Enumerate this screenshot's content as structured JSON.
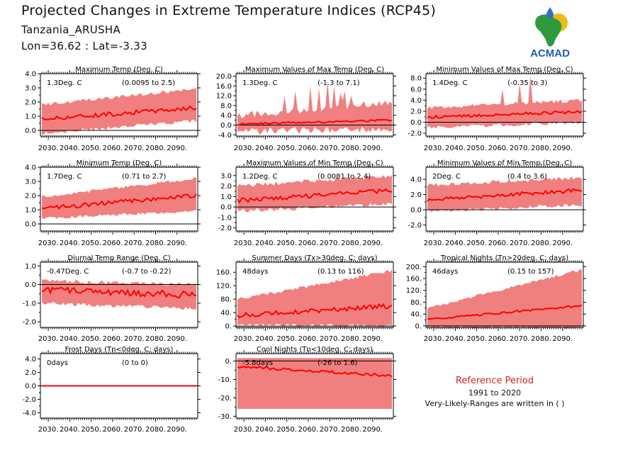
{
  "header": {
    "title": "Projected Changes in Extreme Temperature Indices (RCP45)",
    "region": "Tanzania_ARUSHA",
    "coords": "Lon=36.62 : Lat=-3.33"
  },
  "logo": {
    "text": "ACMAD",
    "icon": "africa-map-logo-icon",
    "colors": {
      "africa": "#2f9a3c",
      "sun": "#f2b81c",
      "drop": "#2f6fc4",
      "text": "#1f5fb0"
    }
  },
  "colors": {
    "band": "#f08080",
    "line": "#ff0000",
    "zero": "#000000",
    "axis": "#000000"
  },
  "reference": {
    "title": "Reference Period",
    "years": "1991 to 2020",
    "note": "Very-Likely-Ranges are written in ( )"
  },
  "chart_data": [
    {
      "id": "max-temp",
      "type": "area",
      "title": "Maximum Temp (Deg. C)",
      "stat": "1.3Deg. C",
      "range": "(0.0095 to 2.5)",
      "x_ticks": [
        "2030.",
        "2040.",
        "2050.",
        "2060.",
        "2070.",
        "2080.",
        "2090."
      ],
      "ylim": [
        -0.4,
        4.0
      ],
      "y_ticks": [
        {
          "v": 4.0,
          "t": "4.0"
        },
        {
          "v": 3.0,
          "t": "3.0"
        },
        {
          "v": 2.0,
          "t": "2.0"
        },
        {
          "v": 1.0,
          "t": "1.0"
        },
        {
          "v": 0.0,
          "t": "0.0"
        }
      ],
      "series": {
        "start": [
          0.8,
          -0.1,
          1.7
        ],
        "end": [
          1.6,
          0.8,
          2.8
        ],
        "noise": 0.15,
        "band_noise": 0.3,
        "spikes": []
      }
    },
    {
      "id": "max-of-max-temp",
      "type": "area",
      "title": "Maximum Values of Max Temp (Deg. C)",
      "stat": "1.3Deg. C",
      "range": "(-1.3 to 7.1)",
      "x_ticks": [
        "2030.",
        "2040.",
        "2050.",
        "2060.",
        "2070.",
        "2080.",
        "2090."
      ],
      "ylim": [
        -4.5,
        21
      ],
      "y_ticks": [
        {
          "v": 20,
          "t": "20.0"
        },
        {
          "v": 16,
          "t": "16.0"
        },
        {
          "v": 12,
          "t": "12.0"
        },
        {
          "v": 8,
          "t": "8.0"
        },
        {
          "v": 4,
          "t": "4.0"
        },
        {
          "v": 0,
          "t": "0.0"
        },
        {
          "v": -4,
          "t": "-4.0"
        }
      ],
      "series": {
        "start": [
          0.4,
          -1.0,
          2.5
        ],
        "end": [
          2.0,
          -0.5,
          8.0
        ],
        "noise": 0.4,
        "band_noise": 3.5,
        "spikes": [
          [
            30,
            12
          ],
          [
            38,
            14
          ],
          [
            47,
            16
          ],
          [
            53,
            15
          ],
          [
            58,
            18
          ],
          [
            62,
            16
          ],
          [
            66,
            13
          ],
          [
            70,
            14
          ],
          [
            74,
            12
          ],
          [
            68,
            10
          ]
        ]
      }
    },
    {
      "id": "min-of-max-temp",
      "type": "area",
      "title": "Minimum Values of Max Temp (Deg. C)",
      "stat": "1.4Deg. C",
      "range": "(-0.35 to 3)",
      "x_ticks": [
        "2030.",
        "2040.",
        "2050.",
        "2060.",
        "2070.",
        "2080.",
        "2090."
      ],
      "ylim": [
        -2.5,
        8.8
      ],
      "y_ticks": [
        {
          "v": 8,
          "t": "8.0"
        },
        {
          "v": 6,
          "t": "6.0"
        },
        {
          "v": 4,
          "t": "4.0"
        },
        {
          "v": 2,
          "t": "2.0"
        },
        {
          "v": 0,
          "t": "0.0"
        },
        {
          "v": -2,
          "t": "-2.0"
        }
      ],
      "series": {
        "start": [
          0.9,
          -0.6,
          2.3
        ],
        "end": [
          1.9,
          0.3,
          3.7
        ],
        "noise": 0.25,
        "band_noise": 0.8,
        "spikes": [
          [
            66,
            8.5
          ],
          [
            60,
            7
          ],
          [
            48,
            6
          ]
        ]
      }
    },
    {
      "id": "min-temp",
      "type": "area",
      "title": "Minimum Temp (Deg. C)",
      "stat": "1.7Deg. C",
      "range": "(0.71 to 2.7)",
      "x_ticks": [
        "2030.",
        "2040.",
        "2050.",
        "2060.",
        "2070.",
        "2080.",
        "2090."
      ],
      "ylim": [
        -0.5,
        4.0
      ],
      "y_ticks": [
        {
          "v": 4.0,
          "t": "4.0"
        },
        {
          "v": 3.0,
          "t": "3.0"
        },
        {
          "v": 2.0,
          "t": "2.0"
        },
        {
          "v": 1.0,
          "t": "1.0"
        },
        {
          "v": 0.0,
          "t": "0.0"
        }
      ],
      "series": {
        "start": [
          1.1,
          0.5,
          1.8
        ],
        "end": [
          2.0,
          1.0,
          3.1
        ],
        "noise": 0.15,
        "band_noise": 0.25,
        "spikes": []
      }
    },
    {
      "id": "max-of-min-temp",
      "type": "area",
      "title": "Maximum Values of Min Temp (Deg. C)",
      "stat": "1.2Deg. C",
      "range": "(0.0081 to 2.4)",
      "x_ticks": [
        "2030.",
        "2040.",
        "2050.",
        "2060.",
        "2070.",
        "2080.",
        "2090."
      ],
      "ylim": [
        -2.3,
        3.8
      ],
      "y_ticks": [
        {
          "v": 3,
          "t": "3.0"
        },
        {
          "v": 2,
          "t": "2.0"
        },
        {
          "v": 1,
          "t": "1.0"
        },
        {
          "v": 0,
          "t": "0.0"
        },
        {
          "v": -1,
          "t": "-1.0"
        },
        {
          "v": -2,
          "t": "-2.0"
        }
      ],
      "series": {
        "start": [
          0.6,
          -0.2,
          1.8
        ],
        "end": [
          1.6,
          0.5,
          2.8
        ],
        "noise": 0.2,
        "band_noise": 0.5,
        "spikes": []
      }
    },
    {
      "id": "min-of-min-temp",
      "type": "area",
      "title": "Minimum Values of Min Temp (Deg. C)",
      "stat": "2Deg. C",
      "range": "(0.4 to 3.6)",
      "x_ticks": [
        "2030.",
        "2040.",
        "2050.",
        "2060.",
        "2070.",
        "2080.",
        "2090."
      ],
      "ylim": [
        -2.8,
        5.6
      ],
      "y_ticks": [
        {
          "v": 4,
          "t": "4.0"
        },
        {
          "v": 2,
          "t": "2.0"
        },
        {
          "v": 0,
          "t": "0.0"
        },
        {
          "v": -2,
          "t": "-2.0"
        }
      ],
      "series": {
        "start": [
          1.3,
          0.0,
          3.0
        ],
        "end": [
          2.6,
          0.9,
          4.0
        ],
        "noise": 0.25,
        "band_noise": 0.6,
        "spikes": []
      }
    },
    {
      "id": "diurnal-temp-range",
      "type": "area",
      "title": "Diurnal Temp Range (Deg. C)",
      "stat": "-0.47Deg. C",
      "range": "(-0.7 to -0.22)",
      "x_ticks": [
        "2030.",
        "2040.",
        "2050.",
        "2060.",
        "2070.",
        "2080.",
        "2090."
      ],
      "ylim": [
        -2.3,
        1.2
      ],
      "y_ticks": [
        {
          "v": 1.0,
          "t": "1.0"
        },
        {
          "v": 0.0,
          "t": "0.0"
        },
        {
          "v": -1.0,
          "t": "-1.0"
        },
        {
          "v": -2.0,
          "t": "-2.0"
        }
      ],
      "series": {
        "start": [
          -0.3,
          -0.9,
          0.1
        ],
        "end": [
          -0.55,
          -1.2,
          -0.1
        ],
        "noise": 0.18,
        "band_noise": 0.25,
        "spikes": []
      }
    },
    {
      "id": "summer-days",
      "type": "area",
      "title": "Summer Days (Tx>30deg. C; days)",
      "stat": "48days",
      "range": "(0.13 to 116)",
      "x_ticks": [
        "2030.",
        "2040.",
        "2050.",
        "2060.",
        "2070.",
        "2080.",
        "2090."
      ],
      "ylim": [
        -4,
        190
      ],
      "y_ticks": [
        {
          "v": 160,
          "t": "160."
        },
        {
          "v": 120,
          "t": "120."
        },
        {
          "v": 80,
          "t": "80."
        },
        {
          "v": 40,
          "t": "40."
        },
        {
          "v": 0,
          "t": "0."
        }
      ],
      "series": {
        "start": [
          32,
          8,
          75
        ],
        "end": [
          60,
          5,
          160
        ],
        "noise": 7,
        "band_noise": 12,
        "spikes": []
      }
    },
    {
      "id": "tropical-nights",
      "type": "area",
      "title": "Tropical Nights (Tn>20deg. C; days)",
      "stat": "46days",
      "range": "(0.15 to 157)",
      "x_ticks": [
        "2030.",
        "2040.",
        "2050.",
        "2060.",
        "2070.",
        "2080.",
        "2090."
      ],
      "ylim": [
        -5,
        215
      ],
      "y_ticks": [
        {
          "v": 200,
          "t": "200."
        },
        {
          "v": 160,
          "t": "160."
        },
        {
          "v": 120,
          "t": "120."
        },
        {
          "v": 80,
          "t": "80."
        },
        {
          "v": 40,
          "t": "40."
        },
        {
          "v": 0,
          "t": "0."
        }
      ],
      "series": {
        "start": [
          22,
          0,
          55
        ],
        "end": [
          68,
          0,
          185
        ],
        "noise": 3,
        "band_noise": 12,
        "spikes": []
      }
    },
    {
      "id": "frost-days",
      "type": "line",
      "title": "Frost Days (Tn<0deg. C; days)",
      "stat": "0days",
      "range": "(0 to 0)",
      "x_ticks": [
        "2030.",
        "2040.",
        "2050.",
        "2060.",
        "2070.",
        "2080.",
        "2090."
      ],
      "ylim": [
        -4.8,
        4.8
      ],
      "y_ticks": [
        {
          "v": 4,
          "t": "4.0"
        },
        {
          "v": 2,
          "t": "2.0"
        },
        {
          "v": 0,
          "t": "0.0"
        },
        {
          "v": -2,
          "t": "-2.0"
        },
        {
          "v": -4,
          "t": "-4.0"
        }
      ],
      "series": {
        "start": [
          0,
          0,
          0
        ],
        "end": [
          0,
          0,
          0
        ],
        "noise": 0,
        "band_noise": 0,
        "spikes": []
      }
    },
    {
      "id": "cool-nights",
      "type": "area",
      "title": "Cool Nights (Tn<10deg. C; days)",
      "stat": "-5.8days",
      "range": "(-26 to 1.6)",
      "x_ticks": [
        "2030.",
        "2040.",
        "2050.",
        "2060.",
        "2070.",
        "2080.",
        "2090."
      ],
      "ylim": [
        -31,
        4
      ],
      "y_ticks": [
        {
          "v": 0,
          "t": "0."
        },
        {
          "v": -10,
          "t": "-10."
        },
        {
          "v": -20,
          "t": "-20."
        },
        {
          "v": -30,
          "t": "-30."
        }
      ],
      "series": {
        "start": [
          -3,
          -26,
          1.6
        ],
        "end": [
          -8,
          -26,
          1.6
        ],
        "noise": 0.7,
        "band_noise": 0,
        "spikes": []
      }
    }
  ]
}
